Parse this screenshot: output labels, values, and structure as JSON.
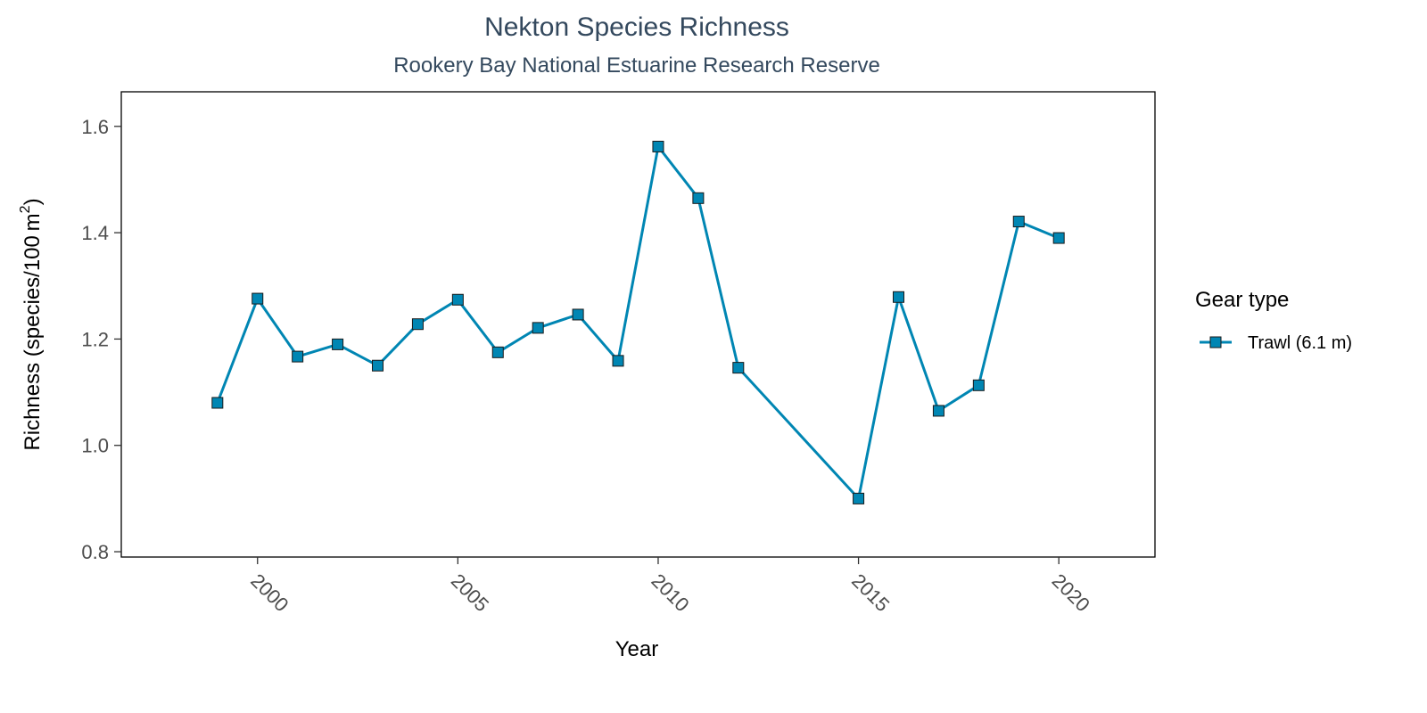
{
  "chart_data": {
    "type": "line",
    "title": "Nekton Species Richness",
    "subtitle": "Rookery Bay National Estuarine Research Reserve",
    "xlabel": "Year",
    "ylabel": "Richness (species/100 m²)",
    "ylabel_parts": {
      "main": "Richness (species/100 m",
      "sup": "2",
      "close": ")"
    },
    "xlim": [
      1996.6,
      2022.4
    ],
    "ylim": [
      0.79,
      1.665
    ],
    "x_ticks": [
      2000,
      2005,
      2010,
      2015,
      2020
    ],
    "y_ticks": [
      0.8,
      1.0,
      1.2,
      1.4,
      1.6
    ],
    "y_tick_labels": [
      "0.8",
      "1.0",
      "1.2",
      "1.4",
      "1.6"
    ],
    "grid": false,
    "legend": {
      "title": "Gear type",
      "placement": "right"
    },
    "series": [
      {
        "name": "Trawl (6.1 m)",
        "color": "#0086b3",
        "marker": "square",
        "x": [
          1999,
          2000,
          2001,
          2002,
          2003,
          2004,
          2005,
          2006,
          2007,
          2008,
          2009,
          2010,
          2011,
          2012,
          2015,
          2016,
          2017,
          2018,
          2019,
          2020
        ],
        "y": [
          1.08,
          1.276,
          1.167,
          1.19,
          1.15,
          1.228,
          1.274,
          1.175,
          1.221,
          1.246,
          1.159,
          1.562,
          1.465,
          1.146,
          0.9,
          1.279,
          1.065,
          1.113,
          1.421,
          1.39
        ]
      }
    ]
  }
}
